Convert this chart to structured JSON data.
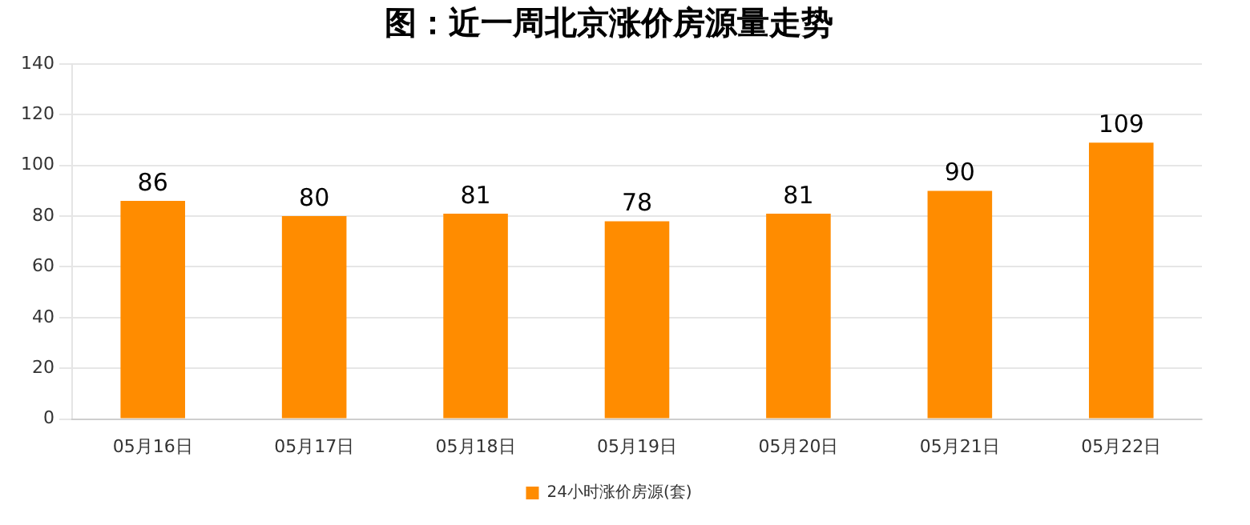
{
  "chart_data": {
    "type": "bar",
    "title": "图：近一周北京涨价房源量走势",
    "categories": [
      "05月16日",
      "05月17日",
      "05月18日",
      "05月19日",
      "05月20日",
      "05月21日",
      "05月22日"
    ],
    "series": [
      {
        "name": "24小时涨价房源(套)",
        "color": "#ff8c00",
        "values": [
          86,
          80,
          81,
          78,
          81,
          90,
          109
        ]
      }
    ],
    "ylim": [
      0,
      140
    ],
    "yticks": [
      0,
      20,
      40,
      60,
      80,
      100,
      120,
      140
    ],
    "grid": "y",
    "legend": "bottom",
    "data_labels": true
  }
}
